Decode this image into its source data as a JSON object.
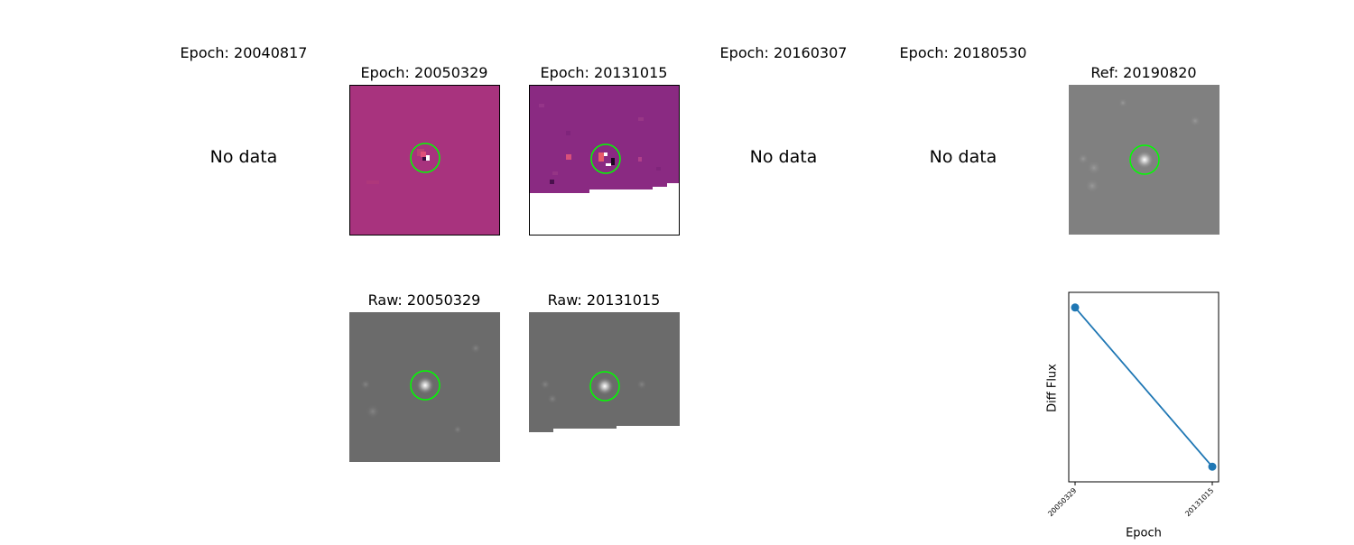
{
  "panels": {
    "epoch_20040817": {
      "title": "Epoch: 20040817",
      "status": "No data"
    },
    "epoch_20050329": {
      "title": "Epoch: 20050329"
    },
    "epoch_20131015": {
      "title": "Epoch: 20131015"
    },
    "epoch_20160307": {
      "title": "Epoch: 20160307",
      "status": "No data"
    },
    "epoch_20180530": {
      "title": "Epoch: 20180530",
      "status": "No data"
    },
    "ref_20190820": {
      "title": "Ref: 20190820"
    },
    "raw_20050329": {
      "title": "Raw: 20050329"
    },
    "raw_20131015": {
      "title": "Raw: 20131015"
    }
  },
  "colors": {
    "diff_background": "#a8337e",
    "diff_noisy": "#8a2a82",
    "raw_background": "#6b6b6b",
    "ref_background": "#808080",
    "aperture": "#00ff00",
    "series": "#1f77b4"
  },
  "chart_data": {
    "type": "line",
    "x": [
      "20050329",
      "20131015"
    ],
    "xticks": [
      "20050329",
      "20131015"
    ],
    "series": [
      {
        "values": [
          0.92,
          0.08
        ]
      }
    ],
    "xlabel": "Epoch",
    "ylabel": "Diff Flux",
    "yticks_shown": false,
    "grid": false
  }
}
